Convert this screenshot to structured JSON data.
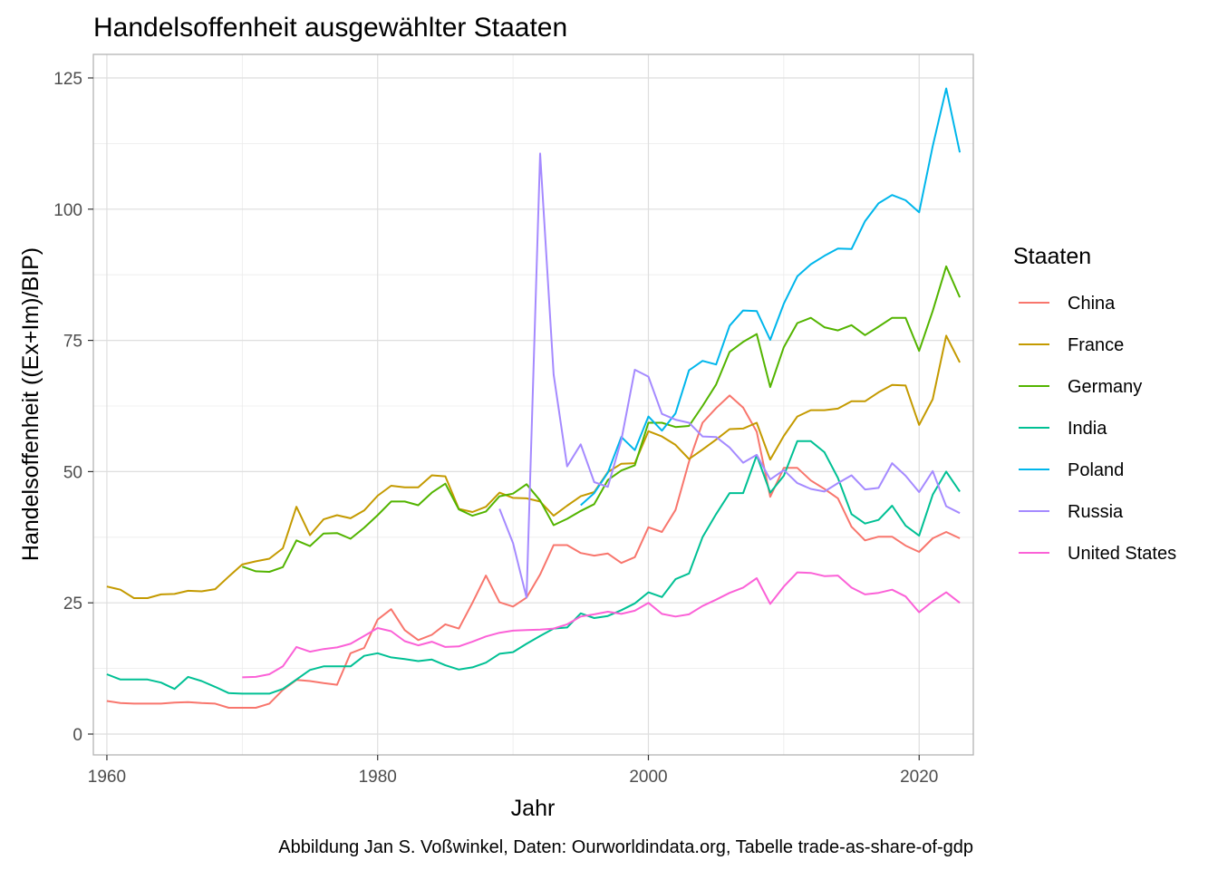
{
  "chart_data": {
    "type": "line",
    "title": "Handelsoffenheit ausgewählter Staaten",
    "xlabel": "Jahr",
    "ylabel": "Handelsoffenheit ((Ex+Im)/BIP)",
    "caption": "Abbildung Jan S. Voßwinkel,  Daten: Ourworldindata.org,  Tabelle trade-as-share-of-gdp",
    "xlim": [
      1959,
      2024
    ],
    "ylim": [
      0,
      125
    ],
    "x_ticks": [
      1960,
      1980,
      2000,
      2020
    ],
    "y_ticks": [
      0,
      25,
      50,
      75,
      100,
      125
    ],
    "grid": true,
    "legend": {
      "title": "Staaten",
      "position": "right"
    },
    "series": [
      {
        "name": "China",
        "color": "#F8766D",
        "start": 1960,
        "values": [
          6.3,
          5.9,
          5.8,
          5.8,
          5.8,
          6.0,
          6.1,
          5.9,
          5.8,
          5.0,
          5.0,
          5.0,
          5.8,
          8.4,
          10.3,
          10.1,
          9.7,
          9.4,
          15.4,
          16.4,
          21.8,
          23.8,
          19.8,
          17.9,
          18.9,
          20.9,
          20.1,
          25.0,
          30.2,
          25.1,
          24.3,
          26.0,
          30.4,
          36.0,
          36.0,
          34.5,
          34.0,
          34.4,
          32.6,
          33.7,
          39.4,
          38.5,
          42.7,
          51.9,
          59.3,
          62.1,
          64.5,
          62.2,
          57.6,
          45.2,
          50.7,
          50.7,
          48.3,
          46.7,
          44.9,
          39.5,
          36.9,
          37.6,
          37.6,
          35.9,
          34.7,
          37.3,
          38.5,
          37.3
        ]
      },
      {
        "name": "France",
        "color": "#C49A00",
        "start": 1960,
        "values": [
          28.1,
          27.5,
          25.9,
          25.9,
          26.6,
          26.7,
          27.3,
          27.2,
          27.6,
          30.0,
          32.3,
          32.9,
          33.4,
          35.4,
          43.3,
          37.9,
          40.9,
          41.7,
          41.1,
          42.6,
          45.4,
          47.3,
          47.0,
          47.0,
          49.3,
          49.1,
          42.9,
          42.3,
          43.3,
          46.0,
          45.0,
          44.9,
          44.3,
          41.6,
          43.5,
          45.3,
          46.1,
          49.9,
          51.5,
          51.6,
          57.7,
          56.7,
          55.1,
          52.4,
          54.2,
          56.1,
          58.1,
          58.2,
          59.3,
          52.3,
          56.8,
          60.5,
          61.7,
          61.7,
          62.0,
          63.4,
          63.4,
          65.1,
          66.5,
          66.4,
          58.9,
          63.8,
          75.9,
          70.8
        ]
      },
      {
        "name": "Germany",
        "color": "#53B400",
        "start": 1970,
        "values": [
          31.9,
          31.0,
          30.9,
          31.8,
          36.9,
          35.8,
          38.2,
          38.3,
          37.2,
          39.3,
          41.7,
          44.3,
          44.3,
          43.6,
          46.0,
          47.7,
          42.8,
          41.6,
          42.4,
          45.3,
          45.8,
          47.6,
          44.5,
          39.8,
          41.0,
          42.5,
          43.8,
          48.4,
          50.2,
          51.2,
          59.3,
          59.3,
          58.5,
          58.7,
          62.5,
          66.6,
          72.8,
          74.7,
          76.2,
          66.1,
          73.7,
          78.3,
          79.3,
          77.5,
          76.9,
          77.9,
          76.0,
          77.6,
          79.3,
          79.3,
          73.0,
          80.6,
          89.1,
          83.2
        ]
      },
      {
        "name": "India",
        "color": "#00C094",
        "start": 1960,
        "values": [
          11.4,
          10.4,
          10.4,
          10.4,
          9.8,
          8.6,
          10.9,
          10.1,
          9.0,
          7.8,
          7.7,
          7.7,
          7.7,
          8.6,
          10.4,
          12.2,
          12.9,
          12.9,
          12.9,
          14.9,
          15.4,
          14.6,
          14.3,
          13.9,
          14.2,
          13.1,
          12.3,
          12.7,
          13.6,
          15.3,
          15.6,
          17.2,
          18.7,
          20.1,
          20.3,
          23.0,
          22.1,
          22.5,
          23.6,
          24.9,
          27.0,
          26.1,
          29.5,
          30.6,
          37.5,
          41.9,
          45.9,
          45.9,
          53.1,
          46.0,
          49.2,
          55.8,
          55.8,
          53.7,
          48.8,
          41.9,
          40.1,
          40.8,
          43.5,
          39.7,
          37.8,
          45.6,
          50.0,
          46.2
        ]
      },
      {
        "name": "Poland",
        "color": "#00B6EB",
        "start": 1995,
        "values": [
          43.6,
          45.9,
          49.8,
          56.6,
          54.1,
          60.5,
          57.8,
          61.1,
          69.3,
          71.1,
          70.4,
          77.8,
          80.7,
          80.6,
          75.1,
          82.0,
          87.2,
          89.5,
          91.1,
          92.5,
          92.4,
          97.7,
          101.1,
          102.7,
          101.7,
          99.4,
          112.0,
          123.0,
          110.8
        ]
      },
      {
        "name": "Russia",
        "color": "#A58AFF",
        "start": 1989,
        "values": [
          42.9,
          36.4,
          26.0,
          110.6,
          68.5,
          51.0,
          55.2,
          48.0,
          47.1,
          56.0,
          69.4,
          68.1,
          61.0,
          59.9,
          59.3,
          56.7,
          56.6,
          54.6,
          51.7,
          53.2,
          48.5,
          50.3,
          47.8,
          46.7,
          46.2,
          47.8,
          49.3,
          46.6,
          46.9,
          51.6,
          49.2,
          46.1,
          50.1,
          43.4,
          42.1
        ]
      },
      {
        "name": "United States",
        "color": "#FB61D7",
        "start": 1970,
        "values": [
          10.8,
          10.9,
          11.4,
          12.9,
          16.6,
          15.7,
          16.2,
          16.5,
          17.2,
          18.7,
          20.2,
          19.6,
          17.7,
          16.9,
          17.6,
          16.6,
          16.7,
          17.6,
          18.6,
          19.3,
          19.7,
          19.8,
          19.9,
          20.1,
          20.9,
          22.4,
          22.8,
          23.3,
          22.9,
          23.5,
          25.0,
          22.9,
          22.4,
          22.8,
          24.4,
          25.6,
          26.9,
          27.9,
          29.7,
          24.8,
          28.1,
          30.8,
          30.7,
          30.1,
          30.2,
          27.9,
          26.6,
          26.9,
          27.5,
          26.2,
          23.2,
          25.3,
          27.0,
          25.0
        ]
      }
    ]
  }
}
